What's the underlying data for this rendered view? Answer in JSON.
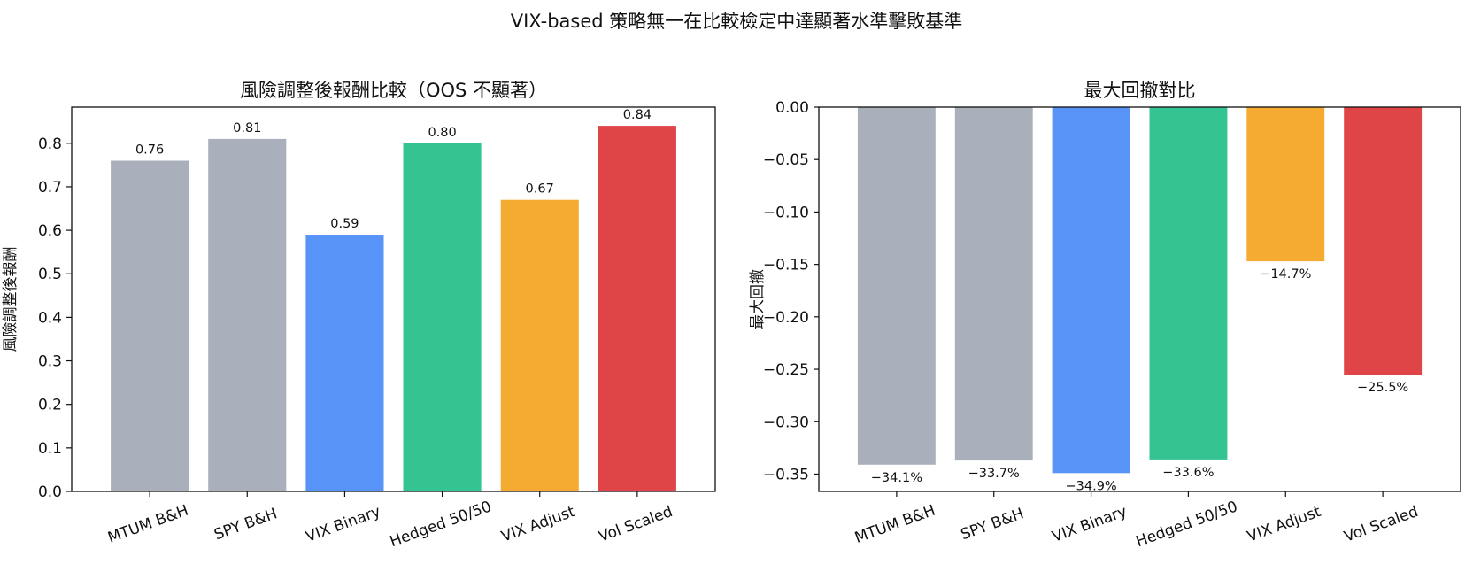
{
  "suptitle": "VIX-based 策略無一在比較檢定中達顯著水準擊敗基準",
  "chart_data": [
    {
      "type": "bar",
      "title": "風險調整後報酬比較（OOS 不顯著）",
      "xlabel": "",
      "ylabel": "風險調整後報酬",
      "categories": [
        "MTUM B&H",
        "SPY B&H",
        "VIX Binary",
        "Hedged 50/50",
        "VIX Adjust",
        "Vol Scaled"
      ],
      "values": [
        0.76,
        0.81,
        0.59,
        0.8,
        0.67,
        0.84
      ],
      "data_labels": [
        "0.76",
        "0.81",
        "0.59",
        "0.80",
        "0.67",
        "0.84"
      ],
      "colors": [
        "#aab0bb",
        "#aab0bb",
        "#5893f7",
        "#34c492",
        "#f5ab31",
        "#df4447"
      ],
      "ylim": [
        0,
        0.883
      ],
      "yticks": [
        0.0,
        0.1,
        0.2,
        0.3,
        0.4,
        0.5,
        0.6,
        0.7,
        0.8
      ],
      "ytick_labels": [
        "0.0",
        "0.1",
        "0.2",
        "0.3",
        "0.4",
        "0.5",
        "0.6",
        "0.7",
        "0.8"
      ],
      "grid": false
    },
    {
      "type": "bar",
      "title": "最大回撤對比",
      "xlabel": "",
      "ylabel": "最大回撤",
      "categories": [
        "MTUM B&H",
        "SPY B&H",
        "VIX Binary",
        "Hedged 50/50",
        "VIX Adjust",
        "Vol Scaled"
      ],
      "values": [
        -0.341,
        -0.337,
        -0.349,
        -0.336,
        -0.147,
        -0.255
      ],
      "data_labels": [
        "−34.1%",
        "−33.7%",
        "−34.9%",
        "−33.6%",
        "−14.7%",
        "−25.5%"
      ],
      "colors": [
        "#aab0bb",
        "#aab0bb",
        "#5893f7",
        "#34c492",
        "#f5ab31",
        "#df4447"
      ],
      "ylim": [
        -0.3665,
        0.0
      ],
      "yticks": [
        0.0,
        -0.05,
        -0.1,
        -0.15,
        -0.2,
        -0.25,
        -0.3,
        -0.35
      ],
      "ytick_labels": [
        "0.00",
        "−0.05",
        "−0.10",
        "−0.15",
        "−0.20",
        "−0.25",
        "−0.30",
        "−0.35"
      ],
      "grid": false
    }
  ]
}
